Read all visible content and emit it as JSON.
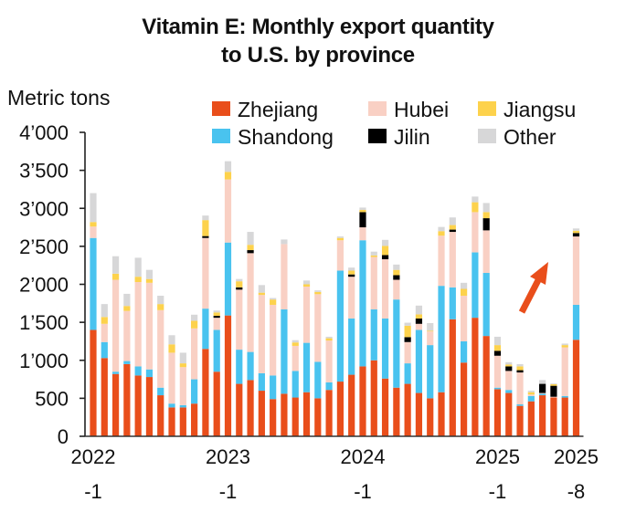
{
  "chart_data": {
    "type": "bar",
    "stacked": true,
    "title": "Vitamin E: Monthly export quantity to U.S. by province",
    "title_lines": [
      "Vitamin E: Monthly export quantity",
      "to U.S. by province"
    ],
    "ylabel": "Metric tons",
    "xlabel": "",
    "ylim": [
      0,
      4000
    ],
    "yticks": [
      0,
      500,
      1000,
      1500,
      2000,
      2500,
      3000,
      3500,
      4000
    ],
    "ytick_labels": [
      "0",
      "500",
      "1’000",
      "1’500",
      "2’000",
      "2’500",
      "3’000",
      "3’500",
      "4’000"
    ],
    "grid": false,
    "legend_position": "top-right",
    "categories": [
      "2022-1",
      "2022-2",
      "2022-3",
      "2022-4",
      "2022-5",
      "2022-6",
      "2022-7",
      "2022-8",
      "2022-9",
      "2022-10",
      "2022-11",
      "2022-12",
      "2023-1",
      "2023-2",
      "2023-3",
      "2023-4",
      "2023-5",
      "2023-6",
      "2023-7",
      "2023-8",
      "2023-9",
      "2023-10",
      "2023-11",
      "2023-12",
      "2024-1",
      "2024-2",
      "2024-3",
      "2024-4",
      "2024-5",
      "2024-6",
      "2024-7",
      "2024-8",
      "2024-9",
      "2024-10",
      "2024-11",
      "2024-12",
      "2025-1",
      "2025-2",
      "2025-3",
      "2025-4",
      "2025-5",
      "2025-6",
      "2025-7",
      "2025-8"
    ],
    "xtick_labels": [
      {
        "index": 0,
        "line1": "2022",
        "line2": "-1"
      },
      {
        "index": 12,
        "line1": "2023",
        "line2": "-1"
      },
      {
        "index": 24,
        "line1": "2024",
        "line2": "-1"
      },
      {
        "index": 36,
        "line1": "2025",
        "line2": "-1"
      },
      {
        "index": 43,
        "line1": "2025",
        "line2": "-8"
      }
    ],
    "series": [
      {
        "name": "Zhejiang",
        "color": "#e94e1b",
        "values": [
          1400,
          1030,
          820,
          950,
          800,
          780,
          540,
          380,
          380,
          430,
          1150,
          850,
          1590,
          690,
          740,
          600,
          490,
          560,
          510,
          580,
          500,
          610,
          720,
          810,
          920,
          1000,
          760,
          640,
          690,
          570,
          500,
          580,
          1540,
          970,
          1560,
          1320,
          620,
          570,
          400,
          460,
          540,
          510,
          510,
          1270
        ]
      },
      {
        "name": "Shandong",
        "color": "#49c3ef",
        "values": [
          1210,
          210,
          30,
          40,
          120,
          100,
          100,
          50,
          30,
          320,
          530,
          550,
          960,
          450,
          370,
          230,
          310,
          1110,
          350,
          650,
          480,
          100,
          1460,
          740,
          1660,
          670,
          790,
          1160,
          270,
          830,
          700,
          1400,
          420,
          280,
          860,
          830,
          20,
          40,
          20,
          70,
          20,
          0,
          20,
          460
        ]
      },
      {
        "name": "Hubei",
        "color": "#f9d0c4",
        "values": [
          150,
          240,
          1210,
          660,
          1110,
          1140,
          1020,
          670,
          500,
          670,
          930,
          160,
          830,
          790,
          1300,
          1030,
          930,
          860,
          330,
          740,
          890,
          550,
          400,
          550,
          170,
          690,
          780,
          260,
          280,
          80,
          180,
          660,
          730,
          600,
          530,
          560,
          420,
          250,
          420,
          20,
          10,
          10,
          640,
          900
        ]
      },
      {
        "name": "Jilin",
        "color": "#000000",
        "values": [
          0,
          0,
          0,
          0,
          0,
          0,
          0,
          0,
          0,
          0,
          25,
          25,
          0,
          30,
          40,
          0,
          0,
          0,
          0,
          0,
          0,
          0,
          0,
          30,
          200,
          0,
          55,
          60,
          65,
          70,
          0,
          0,
          30,
          0,
          0,
          160,
          65,
          60,
          30,
          0,
          120,
          145,
          0,
          45
        ]
      },
      {
        "name": "Jiangsu",
        "color": "#fdd24c",
        "values": [
          60,
          90,
          80,
          65,
          70,
          50,
          80,
          110,
          50,
          100,
          210,
          45,
          100,
          80,
          70,
          30,
          70,
          0,
          45,
          30,
          30,
          30,
          30,
          50,
          30,
          20,
          120,
          70,
          150,
          55,
          10,
          60,
          60,
          90,
          130,
          80,
          75,
          25,
          50,
          30,
          0,
          20,
          30,
          30
        ]
      },
      {
        "name": "Other",
        "color": "#d7d7d8",
        "values": [
          380,
          170,
          230,
          160,
          250,
          120,
          110,
          120,
          140,
          80,
          60,
          25,
          140,
          30,
          170,
          100,
          20,
          60,
          30,
          50,
          20,
          20,
          20,
          40,
          30,
          50,
          80,
          70,
          40,
          115,
          100,
          55,
          100,
          80,
          75,
          120,
          110,
          30,
          30,
          20,
          50,
          10,
          20,
          30
        ]
      }
    ],
    "legend_order": [
      "Zhejiang",
      "Hubei",
      "Jiangsu",
      "Shandong",
      "Jilin",
      "Other"
    ],
    "annotations": [
      {
        "type": "arrow",
        "color": "#e94e1b",
        "direction": "up-right",
        "points_to": "2025-8"
      }
    ]
  }
}
